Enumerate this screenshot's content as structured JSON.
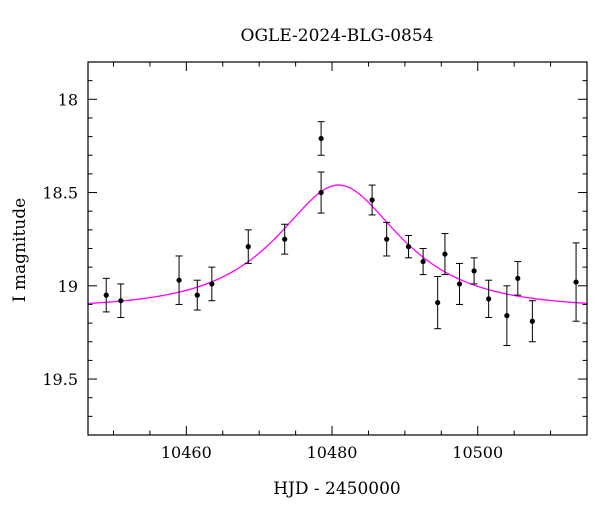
{
  "chart_data": {
    "type": "scatter",
    "title": "OGLE-2024-BLG-0854",
    "xlabel": "HJD - 2450000",
    "ylabel": "I magnitude",
    "xlim": [
      10446.5,
      10515
    ],
    "ylim": [
      19.8,
      17.8
    ],
    "y_inverted": true,
    "grid": false,
    "x_major_ticks": [
      10460,
      10480,
      10500
    ],
    "x_tick_labels": [
      "10460",
      "10480",
      "10500"
    ],
    "x_minor_step": 5,
    "y_major_ticks": [
      18,
      18.5,
      19,
      19.5
    ],
    "y_tick_labels": [
      "18",
      "18.5",
      "19",
      "19.5"
    ],
    "y_minor_step": 0.1,
    "model_color": "#ff00ff",
    "points_color": "#000000",
    "model": {
      "type": "paczynski",
      "t0": 10480.9,
      "tE": 13.0,
      "u0": 0.62,
      "baseline_mag": 19.12
    },
    "series": [
      {
        "x": [
          10449,
          10451,
          10459,
          10461.5,
          10463.5,
          10468.5,
          10473.5,
          10478.5,
          10478.5,
          10485.5,
          10487.5,
          10490.5,
          10492.5,
          10494.5,
          10495.5,
          10497.5,
          10499.5,
          10501.5,
          10504,
          10505.5,
          10507.5,
          10513.5
        ],
        "y": [
          19.05,
          19.08,
          18.97,
          19.05,
          18.99,
          18.79,
          18.75,
          18.21,
          18.5,
          18.54,
          18.75,
          18.79,
          18.87,
          19.09,
          18.83,
          18.99,
          18.92,
          19.07,
          19.16,
          18.96,
          19.19,
          18.98
        ],
        "err": [
          0.09,
          0.09,
          0.13,
          0.08,
          0.09,
          0.09,
          0.08,
          0.09,
          0.11,
          0.08,
          0.09,
          0.06,
          0.07,
          0.14,
          0.11,
          0.11,
          0.07,
          0.1,
          0.16,
          0.09,
          0.11,
          0.21
        ]
      }
    ]
  }
}
